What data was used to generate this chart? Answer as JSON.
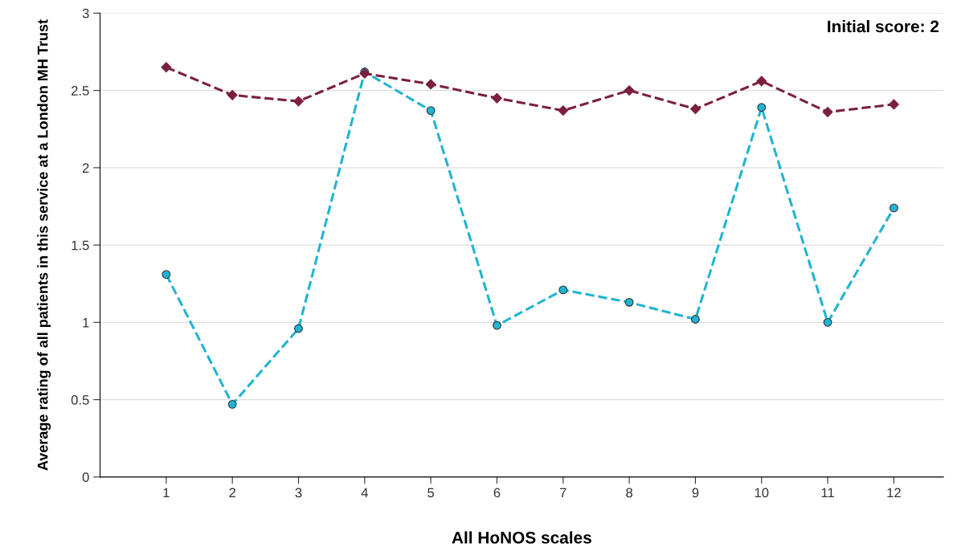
{
  "chart_data": {
    "type": "line",
    "xlabel": "All HoNOS scales",
    "ylabel": "Average rating of all patients in this service at a London MH Trust",
    "annotations": [
      "Initial score: 2"
    ],
    "x": [
      1,
      2,
      3,
      4,
      5,
      6,
      7,
      8,
      9,
      10,
      11,
      12
    ],
    "xlim": [
      0,
      12.75
    ],
    "xticks": [
      1,
      2,
      3,
      4,
      5,
      6,
      7,
      8,
      9,
      10,
      11,
      12
    ],
    "ylim": [
      0,
      3
    ],
    "yticks": [
      0,
      0.5,
      1,
      1.5,
      2,
      2.5,
      3
    ],
    "grid": "y",
    "line_style": "dashed",
    "series": [
      {
        "color": "#7b1f3f",
        "marker": "diamond",
        "values": [
          2.65,
          2.47,
          2.43,
          2.61,
          2.54,
          2.45,
          2.37,
          2.5,
          2.38,
          2.56,
          2.36,
          2.41
        ]
      },
      {
        "color": "#1fb4d2",
        "marker": "circle",
        "values": [
          1.31,
          0.47,
          0.96,
          2.62,
          2.37,
          0.98,
          1.21,
          1.13,
          1.02,
          2.39,
          1.0,
          1.74
        ]
      }
    ]
  }
}
